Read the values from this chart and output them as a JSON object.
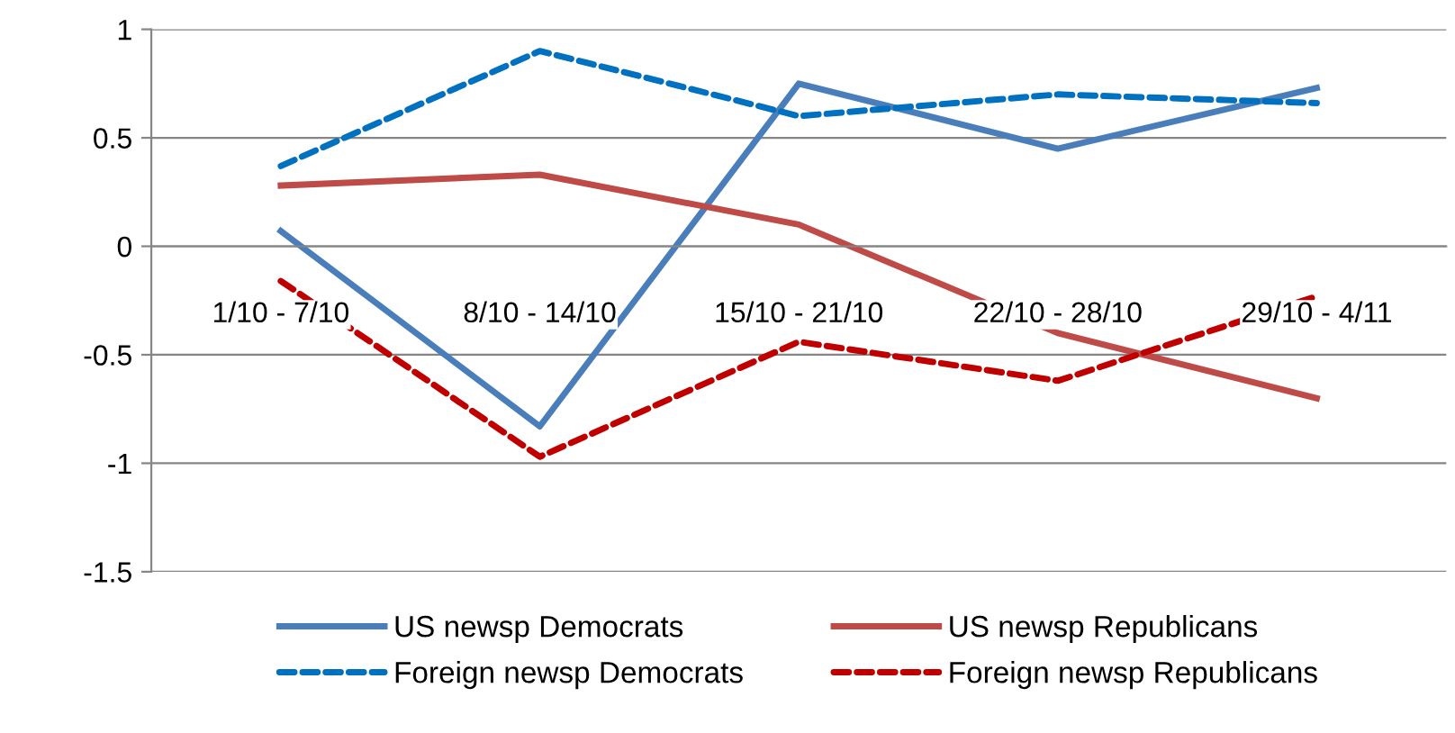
{
  "chart_data": {
    "type": "line",
    "categories": [
      "1/10 - 7/10",
      "8/10 - 14/10",
      "15/10 - 21/10",
      "22/10 - 28/10",
      "29/10 - 4/11"
    ],
    "series": [
      {
        "name": "US newsp Democrats",
        "color": "#4a7ebb",
        "line_style": "solid",
        "values": [
          0.07,
          -0.83,
          0.75,
          0.45,
          0.73
        ]
      },
      {
        "name": "US newsp Republicans",
        "color": "#be4b48",
        "line_style": "solid",
        "values": [
          0.28,
          0.33,
          0.1,
          -0.4,
          -0.7
        ]
      },
      {
        "name": "Foreign newsp Democrats",
        "color": "#0070c0",
        "line_style": "dashed",
        "values": [
          0.37,
          0.9,
          0.6,
          0.7,
          0.66
        ]
      },
      {
        "name": "Foreign newsp Republicans",
        "color": "#c00000",
        "line_style": "dashed",
        "values": [
          -0.16,
          -0.97,
          -0.44,
          -0.62,
          -0.23
        ]
      }
    ],
    "ylim": [
      -1.5,
      1
    ],
    "yticks": [
      -1.5,
      -1,
      -0.5,
      0,
      0.5,
      1
    ],
    "grid": "y",
    "legend": "bottom",
    "marker": "none"
  }
}
